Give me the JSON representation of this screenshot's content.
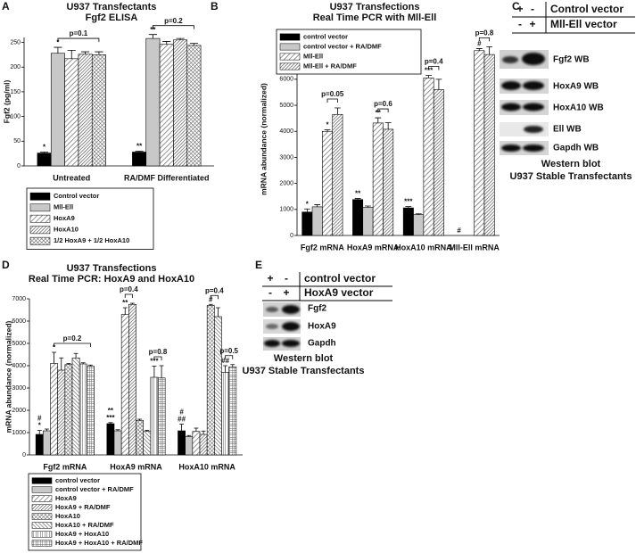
{
  "panels": [
    "A",
    "B",
    "C",
    "D",
    "E"
  ],
  "chart_data": [
    {
      "type": "bar",
      "title": "U937 Transfectants",
      "subtitle": "Fgf2 ELISA",
      "y_label": "Fgf2 (pg/ml)",
      "categories": [
        "Untreated",
        "RA/DMF Differentiated"
      ],
      "series": [
        {
          "name": "Control vector",
          "color": "#000000",
          "pattern": "solid",
          "values": [
            26,
            28
          ],
          "errors": [
            2,
            2
          ]
        },
        {
          "name": "Mll-Ell",
          "color": "#c8c8c8",
          "pattern": "solid",
          "values": [
            228,
            258
          ],
          "errors": [
            12,
            8
          ]
        },
        {
          "name": "HoxA9",
          "pattern": "diag",
          "values": [
            217,
            246
          ],
          "errors": [
            17,
            6
          ]
        },
        {
          "name": "HoxA10",
          "pattern": "diag-dense",
          "values": [
            226,
            255
          ],
          "errors": [
            5,
            3
          ]
        },
        {
          "name": "1/2 HoxA9 + 1/2 HoxA10",
          "pattern": "cross",
          "values": [
            225,
            244
          ],
          "errors": [
            6,
            4
          ]
        }
      ],
      "ylim": [
        0,
        260
      ],
      "yticks": [
        0,
        50,
        100,
        150,
        200,
        250
      ],
      "legend": "below",
      "annotations": [
        {
          "text": "*",
          "category": 0,
          "series": 0
        },
        {
          "text": "*",
          "category": 0,
          "series": 1
        },
        {
          "text": "**",
          "category": 1,
          "series": 0
        },
        {
          "text": "**",
          "category": 1,
          "series": 1
        }
      ],
      "brackets": [
        {
          "text": "p=0.1",
          "category": 0,
          "series": [
            1,
            4
          ]
        },
        {
          "text": "p=0.2",
          "category": 1,
          "series": [
            1,
            4
          ]
        }
      ]
    },
    {
      "type": "bar",
      "title": "U937 Transfections",
      "subtitle": "Real Time PCR with Mll-Ell",
      "y_label": "mRNA abundance (normalized)",
      "categories": [
        "Fgf2 mRNA",
        "HoxA9 mRNA",
        "HoxA10 mRNA",
        "Mll-Ell mRNA"
      ],
      "series": [
        {
          "name": "control vector",
          "color": "#000000",
          "pattern": "solid",
          "values": [
            900,
            1380,
            1060,
            null
          ],
          "errors": [
            120,
            40,
            50,
            null
          ]
        },
        {
          "name": "control vector + RA/DMF",
          "color": "#c8c8c8",
          "pattern": "solid",
          "values": [
            1100,
            1080,
            800,
            null
          ],
          "errors": [
            80,
            50,
            30,
            null
          ]
        },
        {
          "name": "Mll-Ell",
          "pattern": "diag",
          "values": [
            4000,
            4320,
            6050,
            7100
          ],
          "errors": [
            60,
            200,
            100,
            80
          ]
        },
        {
          "name": "Mll-Ell + RA/DMF",
          "pattern": "diag-dense",
          "values": [
            4650,
            4080,
            5600,
            6950
          ],
          "errors": [
            250,
            250,
            400,
            300
          ]
        }
      ],
      "ylim": [
        0,
        7400
      ],
      "yticks": [
        0,
        1000,
        2000,
        3000,
        4000,
        5000,
        6000,
        7000
      ],
      "legend": "upper left",
      "annotations": [
        {
          "text": "*",
          "category": 0,
          "series": 0
        },
        {
          "text": "*",
          "category": 0,
          "series": 2
        },
        {
          "text": "**",
          "category": 1,
          "series": 0
        },
        {
          "text": "**",
          "category": 1,
          "series": 2
        },
        {
          "text": "***",
          "category": 2,
          "series": 0
        },
        {
          "text": "***",
          "category": 2,
          "series": 2
        },
        {
          "text": "#",
          "category": 3,
          "series": 0
        },
        {
          "text": "#",
          "category": 3,
          "series": 2
        }
      ],
      "brackets": [
        {
          "text": "p=0.05",
          "category": 0,
          "series": [
            2,
            3
          ]
        },
        {
          "text": "p=0.6",
          "category": 1,
          "series": [
            2,
            3
          ]
        },
        {
          "text": "p=0.4",
          "category": 2,
          "series": [
            2,
            3
          ]
        },
        {
          "text": "p=0.8",
          "category": 3,
          "series": [
            2,
            3
          ]
        }
      ]
    },
    {
      "type": "bar",
      "title": "U937 Transfections",
      "subtitle": "Real Time PCR: HoxA9 and HoxA10",
      "y_label": "mRNA abundance (normalized)",
      "categories": [
        "Fgf2 mRNA",
        "HoxA9 mRNA",
        "HoxA10 mRNA"
      ],
      "series": [
        {
          "name": "control vector",
          "color": "#000000",
          "pattern": "solid",
          "values": [
            920,
            1400,
            1080
          ],
          "errors": [
            180,
            50,
            300
          ]
        },
        {
          "name": "control vector + RA/DMF",
          "color": "#c8c8c8",
          "pattern": "solid",
          "values": [
            1080,
            1080,
            820
          ],
          "errors": [
            80,
            50,
            50
          ]
        },
        {
          "name": "HoxA9",
          "pattern": "diag",
          "values": [
            4100,
            6300,
            1050
          ],
          "errors": [
            500,
            300,
            150
          ]
        },
        {
          "name": "HoxA9 + RA/DMF",
          "pattern": "diag-dense",
          "values": [
            3800,
            6750,
            920
          ],
          "errors": [
            550,
            50,
            150
          ]
        },
        {
          "name": "HoxA10",
          "pattern": "cross",
          "values": [
            4050,
            1550,
            6700
          ],
          "errors": [
            50,
            50,
            50
          ]
        },
        {
          "name": "HoxA10 + RA/DMF",
          "pattern": "diag-rev",
          "values": [
            4350,
            1050,
            6200
          ],
          "errors": [
            200,
            50,
            400
          ]
        },
        {
          "name": "HoxA9 + HoxA10",
          "pattern": "vertical",
          "values": [
            4080,
            3480,
            3700
          ],
          "errors": [
            50,
            500,
            300
          ]
        },
        {
          "name": "HoxA9 + HoxA10 + RA/DMF",
          "pattern": "grid",
          "values": [
            3980,
            3450,
            3950
          ],
          "errors": [
            50,
            550,
            100
          ]
        }
      ],
      "ylim": [
        0,
        7000
      ],
      "yticks": [
        0,
        1000,
        2000,
        3000,
        4000,
        5000,
        6000,
        7000
      ],
      "legend": "below",
      "annotations": [
        {
          "text": "*",
          "category": 0,
          "series": 0
        },
        {
          "text": "#",
          "category": 0,
          "series": 0
        },
        {
          "text": "*",
          "category": 0,
          "series": 2
        },
        {
          "text": "***",
          "category": 1,
          "series": 0
        },
        {
          "text": "**",
          "category": 1,
          "series": 0
        },
        {
          "text": "**",
          "category": 1,
          "series": 2
        },
        {
          "text": "***",
          "category": 1,
          "series": 6
        },
        {
          "text": "##",
          "category": 2,
          "series": 0
        },
        {
          "text": "#",
          "category": 2,
          "series": 0
        },
        {
          "text": "#",
          "category": 2,
          "series": 4
        },
        {
          "text": "##",
          "category": 2,
          "series": 6
        }
      ],
      "brackets": [
        {
          "text": "p=0.2",
          "category": 0,
          "series": [
            2,
            7
          ]
        },
        {
          "text": "p=0.4",
          "category": 1,
          "series": [
            2,
            3
          ]
        },
        {
          "text": "p=0.8",
          "category": 1,
          "series": [
            6,
            7
          ]
        },
        {
          "text": "p=0.4",
          "category": 2,
          "series": [
            4,
            5
          ]
        },
        {
          "text": "p=0.5",
          "category": 2,
          "series": [
            6,
            7
          ]
        }
      ]
    }
  ],
  "blots": [
    {
      "header": [
        [
          "+",
          "-",
          "Control vector"
        ],
        [
          "-",
          "+",
          "Mll-Ell vector"
        ]
      ],
      "bands": [
        "Fgf2 WB",
        "HoxA9 WB",
        "HoxA10 WB",
        "Ell WB",
        "Gapdh WB"
      ],
      "caption": [
        "Western blot",
        "U937 Stable Transfectants"
      ]
    },
    {
      "header": [
        [
          "+",
          "-",
          "control vector"
        ],
        [
          "-",
          "+",
          "HoxA9 vector"
        ]
      ],
      "bands": [
        "Fgf2",
        "HoxA9",
        "Gapdh"
      ],
      "caption": [
        "Western blot",
        "U937 Stable Transfectants"
      ]
    }
  ]
}
